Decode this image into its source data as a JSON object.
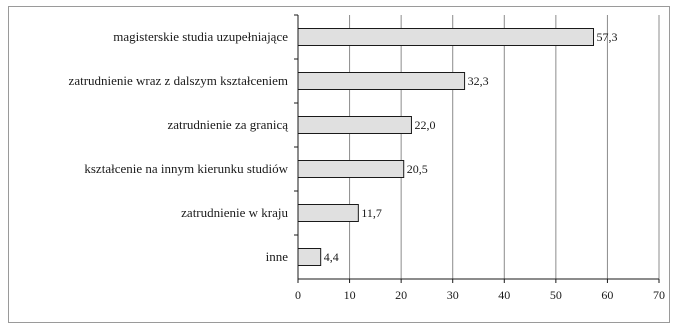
{
  "chart_data": {
    "type": "bar",
    "orientation": "horizontal",
    "categories": [
      "magisterskie studia uzupełniające",
      "zatrudnienie wraz z dalszym kształceniem",
      "zatrudnienie za granicą",
      "kształcenie na innym kierunku studiów",
      "zatrudnienie w kraju",
      "inne"
    ],
    "values": [
      57.3,
      32.3,
      22.0,
      20.5,
      11.7,
      4.4
    ],
    "value_labels": [
      "57,3",
      "32,3",
      "22,0",
      "20,5",
      "11,7",
      "4,4"
    ],
    "xlim": [
      0,
      70
    ],
    "xticks": [
      0,
      10,
      20,
      30,
      40,
      50,
      60,
      70
    ],
    "grid": "vertical",
    "bar_color": "#e0e0e0",
    "bar_edge_color": "#1a1a1a",
    "grid_color": "#8c8c8c"
  }
}
